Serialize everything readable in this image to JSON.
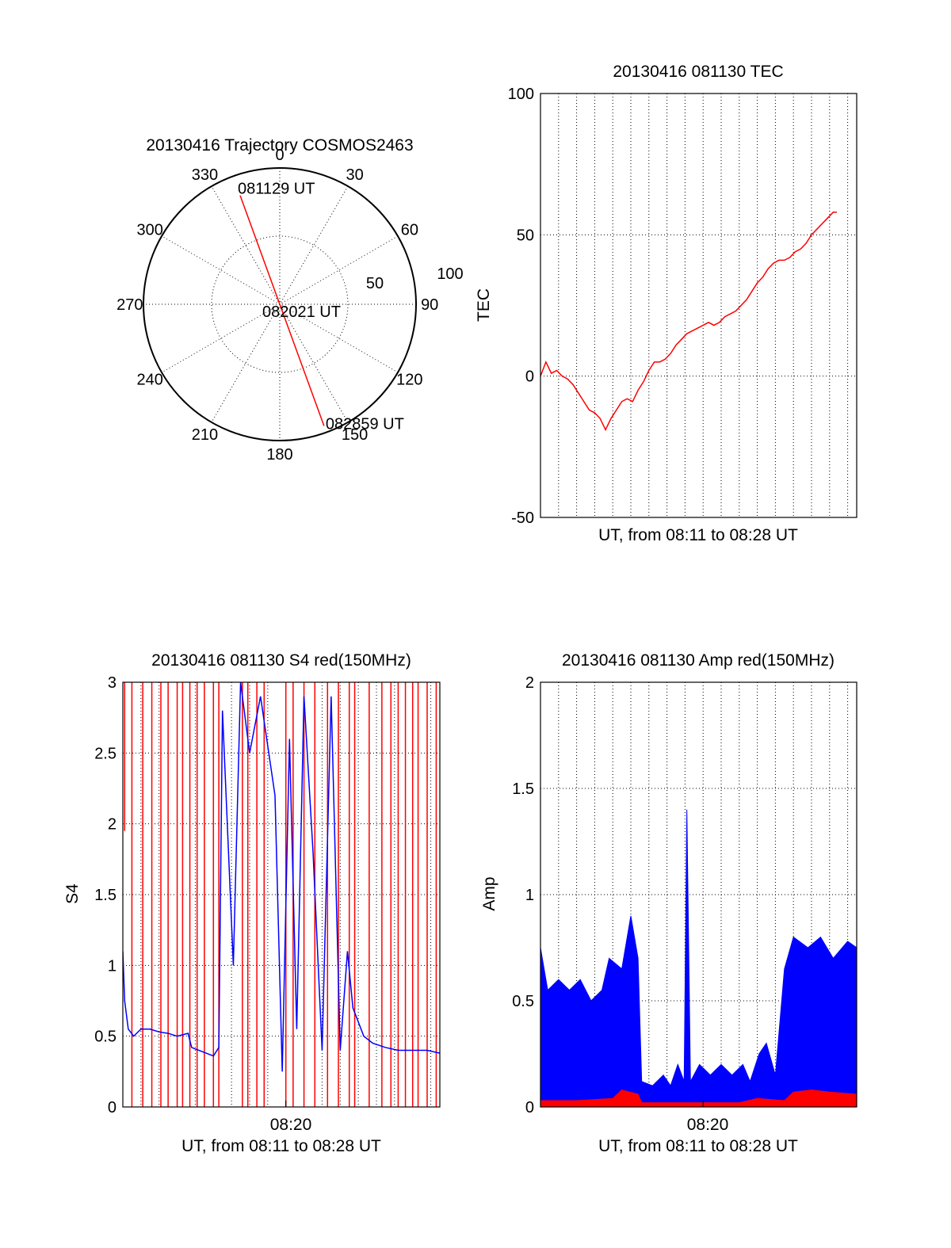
{
  "colors": {
    "red": "#ff0000",
    "blue": "#0000ff",
    "axis": "#000000",
    "grid": "#000000"
  },
  "chart_data": [
    {
      "type": "polar",
      "title": "20130416 Trajectory COSMOS2463",
      "angle_labels": [
        "0",
        "30",
        "60",
        "90",
        "120",
        "150",
        "180",
        "210",
        "240",
        "270",
        "300",
        "330"
      ],
      "radial_labels": [
        "50",
        "100"
      ],
      "time_labels": {
        "start": "081129 UT",
        "mid": "082021 UT",
        "end": "082859 UT"
      },
      "track": [
        {
          "az": 340,
          "r": 85
        },
        {
          "az": 160,
          "r": 95
        }
      ]
    },
    {
      "type": "line",
      "title": "20130416 081130 TEC",
      "xlabel": "UT, from 08:11 to 08:28 UT",
      "ylabel": "TEC",
      "ylim": [
        -50,
        100
      ],
      "yticks": [
        "-50",
        "0",
        "50",
        "100"
      ],
      "xlim": [
        0,
        17.5
      ],
      "grid": true,
      "series": [
        {
          "color": "red",
          "points": [
            [
              0.0,
              0
            ],
            [
              0.3,
              5
            ],
            [
              0.6,
              1
            ],
            [
              0.9,
              2
            ],
            [
              1.2,
              0
            ],
            [
              1.5,
              -1
            ],
            [
              1.8,
              -3
            ],
            [
              2.1,
              -6
            ],
            [
              2.4,
              -9
            ],
            [
              2.7,
              -12
            ],
            [
              3.0,
              -13
            ],
            [
              3.3,
              -15
            ],
            [
              3.6,
              -19
            ],
            [
              3.9,
              -15
            ],
            [
              4.2,
              -12
            ],
            [
              4.5,
              -9
            ],
            [
              4.8,
              -8
            ],
            [
              5.1,
              -9
            ],
            [
              5.4,
              -5
            ],
            [
              5.7,
              -2
            ],
            [
              6.0,
              2
            ],
            [
              6.3,
              5
            ],
            [
              6.6,
              5
            ],
            [
              6.9,
              6
            ],
            [
              7.2,
              8
            ],
            [
              7.5,
              11
            ],
            [
              7.8,
              13
            ],
            [
              8.1,
              15
            ],
            [
              8.4,
              16
            ],
            [
              8.7,
              17
            ],
            [
              9.0,
              18
            ],
            [
              9.3,
              19
            ],
            [
              9.6,
              18
            ],
            [
              9.9,
              19
            ],
            [
              10.2,
              21
            ],
            [
              10.5,
              22
            ],
            [
              10.8,
              23
            ],
            [
              11.1,
              25
            ],
            [
              11.4,
              27
            ],
            [
              11.7,
              30
            ],
            [
              12.0,
              33
            ],
            [
              12.3,
              35
            ],
            [
              12.6,
              38
            ],
            [
              12.9,
              40
            ],
            [
              13.2,
              41
            ],
            [
              13.5,
              41
            ],
            [
              13.8,
              42
            ],
            [
              14.1,
              44
            ],
            [
              14.4,
              45
            ],
            [
              14.7,
              47
            ],
            [
              15.0,
              50
            ],
            [
              15.3,
              52
            ],
            [
              15.6,
              54
            ],
            [
              15.9,
              56
            ],
            [
              16.2,
              58
            ],
            [
              16.4,
              58
            ]
          ]
        }
      ]
    },
    {
      "type": "line",
      "title": "20130416 081130 S4 red(150MHz)",
      "xlabel": "UT, from 08:11 to 08:28 UT",
      "ylabel": "S4",
      "ylim": [
        0,
        3
      ],
      "yticks": [
        "0",
        "0.5",
        "1",
        "1.5",
        "2",
        "2.5",
        "3"
      ],
      "xtick_label": "08:20",
      "xtick_value": 9.0,
      "xlim": [
        0,
        17.5
      ],
      "grid": true,
      "series": [
        {
          "color": "red",
          "kind": "spikes",
          "events": [
            [
              0.1,
              1.95
            ],
            [
              0.5,
              0.0
            ],
            [
              1.1,
              0.0
            ],
            [
              1.6,
              0.0
            ],
            [
              2.1,
              0.0
            ],
            [
              2.5,
              0.0
            ],
            [
              3.0,
              0.0
            ],
            [
              3.3,
              0.0
            ],
            [
              3.7,
              0.0
            ],
            [
              4.1,
              0.0
            ],
            [
              4.5,
              0.0
            ],
            [
              5.0,
              0.0
            ],
            [
              5.3,
              0.0
            ],
            [
              6.6,
              0.0
            ],
            [
              6.9,
              0.0
            ],
            [
              7.4,
              0.0
            ],
            [
              7.8,
              0.0
            ],
            [
              9.0,
              0.0
            ],
            [
              9.4,
              0.0
            ],
            [
              10.0,
              0.0
            ],
            [
              10.6,
              0.0
            ],
            [
              11.3,
              0.0
            ],
            [
              11.9,
              0.0
            ],
            [
              12.5,
              0.0
            ],
            [
              12.8,
              0.0
            ],
            [
              13.6,
              0.0
            ],
            [
              14.3,
              0.0
            ],
            [
              14.8,
              0.0
            ],
            [
              15.2,
              0.0
            ],
            [
              15.6,
              0.0
            ],
            [
              16.0,
              0.0
            ],
            [
              16.3,
              0.0
            ],
            [
              16.8,
              0.0
            ],
            [
              17.3,
              0.0
            ]
          ]
        },
        {
          "color": "blue",
          "kind": "trace",
          "points": [
            [
              0.0,
              1.1
            ],
            [
              0.1,
              0.75
            ],
            [
              0.3,
              0.55
            ],
            [
              0.6,
              0.5
            ],
            [
              1.0,
              0.55
            ],
            [
              1.5,
              0.55
            ],
            [
              2.0,
              0.53
            ],
            [
              2.5,
              0.52
            ],
            [
              3.0,
              0.5
            ],
            [
              3.6,
              0.52
            ],
            [
              3.8,
              0.42
            ],
            [
              4.2,
              0.4
            ],
            [
              4.6,
              0.38
            ],
            [
              5.0,
              0.36
            ],
            [
              5.3,
              0.42
            ],
            [
              5.5,
              2.8
            ],
            [
              6.1,
              1.0
            ],
            [
              6.5,
              3.0
            ],
            [
              7.0,
              2.5
            ],
            [
              7.6,
              2.9
            ],
            [
              8.4,
              2.2
            ],
            [
              8.8,
              0.25
            ],
            [
              9.2,
              2.6
            ],
            [
              9.6,
              0.55
            ],
            [
              10.0,
              2.9
            ],
            [
              10.5,
              1.8
            ],
            [
              11.0,
              0.4
            ],
            [
              11.5,
              2.9
            ],
            [
              12.0,
              0.4
            ],
            [
              12.4,
              1.1
            ],
            [
              12.7,
              0.7
            ],
            [
              13.3,
              0.5
            ],
            [
              13.8,
              0.45
            ],
            [
              14.5,
              0.42
            ],
            [
              15.2,
              0.4
            ],
            [
              16.0,
              0.4
            ],
            [
              16.8,
              0.4
            ],
            [
              17.5,
              0.38
            ]
          ]
        }
      ]
    },
    {
      "type": "line",
      "title": "20130416 081130 Amp red(150MHz)",
      "xlabel": "UT, from 08:11 to 08:28 UT",
      "ylabel": "Amp",
      "ylim": [
        0,
        2
      ],
      "yticks": [
        "0",
        "0.5",
        "1",
        "1.5",
        "2"
      ],
      "xtick_label": "08:20",
      "xtick_value": 9.0,
      "xlim": [
        0,
        17.5
      ],
      "grid": true,
      "series": [
        {
          "color": "blue",
          "kind": "envelope",
          "points": [
            [
              0.0,
              0.75
            ],
            [
              0.4,
              0.55
            ],
            [
              1.0,
              0.6
            ],
            [
              1.6,
              0.55
            ],
            [
              2.2,
              0.6
            ],
            [
              2.8,
              0.5
            ],
            [
              3.4,
              0.55
            ],
            [
              3.8,
              0.7
            ],
            [
              4.5,
              0.65
            ],
            [
              5.0,
              0.9
            ],
            [
              5.4,
              0.7
            ],
            [
              5.6,
              0.12
            ],
            [
              6.2,
              0.1
            ],
            [
              6.8,
              0.15
            ],
            [
              7.2,
              0.1
            ],
            [
              7.6,
              0.2
            ],
            [
              7.95,
              0.12
            ],
            [
              8.1,
              1.4
            ],
            [
              8.3,
              0.12
            ],
            [
              8.8,
              0.2
            ],
            [
              9.4,
              0.15
            ],
            [
              10.0,
              0.2
            ],
            [
              10.6,
              0.15
            ],
            [
              11.2,
              0.2
            ],
            [
              11.6,
              0.12
            ],
            [
              12.1,
              0.25
            ],
            [
              12.5,
              0.3
            ],
            [
              13.0,
              0.15
            ],
            [
              13.5,
              0.65
            ],
            [
              14.0,
              0.8
            ],
            [
              14.8,
              0.75
            ],
            [
              15.5,
              0.8
            ],
            [
              16.2,
              0.7
            ],
            [
              17.0,
              0.78
            ],
            [
              17.5,
              0.75
            ]
          ]
        },
        {
          "color": "red",
          "kind": "envelope",
          "points": [
            [
              0.0,
              0.03
            ],
            [
              2.0,
              0.03
            ],
            [
              4.0,
              0.04
            ],
            [
              4.5,
              0.08
            ],
            [
              5.4,
              0.06
            ],
            [
              5.6,
              0.02
            ],
            [
              9.0,
              0.02
            ],
            [
              11.0,
              0.02
            ],
            [
              12.0,
              0.04
            ],
            [
              13.5,
              0.03
            ],
            [
              14.0,
              0.07
            ],
            [
              15.0,
              0.08
            ],
            [
              16.0,
              0.07
            ],
            [
              17.5,
              0.06
            ]
          ]
        }
      ]
    }
  ]
}
